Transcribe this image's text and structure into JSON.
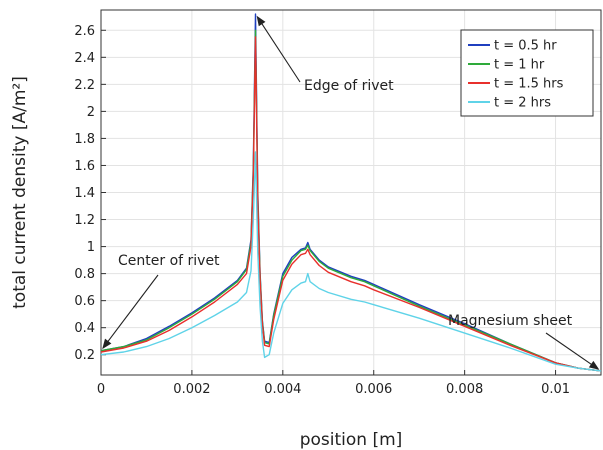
{
  "chart_data": {
    "type": "line",
    "xlabel": "position [m]",
    "ylabel": "total current density [A/m²]",
    "xlim": [
      0,
      0.011
    ],
    "ylim": [
      0.05,
      2.75
    ],
    "x_ticks": [
      {
        "value": 0,
        "label": "0"
      },
      {
        "value": 0.002,
        "label": "0.002"
      },
      {
        "value": 0.004,
        "label": "0.004"
      },
      {
        "value": 0.006,
        "label": "0.006"
      },
      {
        "value": 0.008,
        "label": "0.008"
      },
      {
        "value": 0.01,
        "label": "0.01"
      }
    ],
    "y_ticks": [
      {
        "value": 0.2,
        "label": "0.2"
      },
      {
        "value": 0.4,
        "label": "0.4"
      },
      {
        "value": 0.6,
        "label": "0.6"
      },
      {
        "value": 0.8,
        "label": "0.8"
      },
      {
        "value": 1.0,
        "label": "1"
      },
      {
        "value": 1.2,
        "label": "1.2"
      },
      {
        "value": 1.4,
        "label": "1.4"
      },
      {
        "value": 1.6,
        "label": "1.6"
      },
      {
        "value": 1.8,
        "label": "1.8"
      },
      {
        "value": 2.0,
        "label": "2"
      },
      {
        "value": 2.2,
        "label": "2.2"
      },
      {
        "value": 2.4,
        "label": "2.4"
      },
      {
        "value": 2.6,
        "label": "2.6"
      }
    ],
    "grid": true,
    "legend_position": "top-right",
    "series": [
      {
        "name": "t = 0.5 hr",
        "color": "#1f3fbf",
        "x": [
          0,
          0.0005,
          0.001,
          0.0015,
          0.002,
          0.0025,
          0.003,
          0.0032,
          0.0033,
          0.00335,
          0.0034,
          0.00345,
          0.0035,
          0.00355,
          0.0036,
          0.0037,
          0.0038,
          0.004,
          0.0042,
          0.0044,
          0.0045,
          0.00455,
          0.0046,
          0.0048,
          0.005,
          0.0055,
          0.0058,
          0.006,
          0.007,
          0.008,
          0.009,
          0.01,
          0.0105,
          0.011
        ],
        "y": [
          0.23,
          0.26,
          0.32,
          0.41,
          0.51,
          0.62,
          0.75,
          0.84,
          1.05,
          1.6,
          2.72,
          1.4,
          0.8,
          0.45,
          0.3,
          0.29,
          0.5,
          0.8,
          0.92,
          0.98,
          0.99,
          1.03,
          0.98,
          0.9,
          0.85,
          0.78,
          0.75,
          0.72,
          0.57,
          0.43,
          0.28,
          0.14,
          0.1,
          0.08
        ]
      },
      {
        "name": "t = 1 hr",
        "color": "#2eaa3a",
        "x": [
          0,
          0.0005,
          0.001,
          0.0015,
          0.002,
          0.0025,
          0.003,
          0.0032,
          0.0033,
          0.00335,
          0.0034,
          0.00345,
          0.0035,
          0.00355,
          0.0036,
          0.0037,
          0.0038,
          0.004,
          0.0042,
          0.0044,
          0.0045,
          0.00455,
          0.0046,
          0.0048,
          0.005,
          0.0055,
          0.0058,
          0.006,
          0.007,
          0.008,
          0.009,
          0.01,
          0.0105,
          0.011
        ],
        "y": [
          0.23,
          0.26,
          0.31,
          0.4,
          0.5,
          0.61,
          0.74,
          0.83,
          1.03,
          1.55,
          2.6,
          1.35,
          0.78,
          0.44,
          0.29,
          0.28,
          0.49,
          0.78,
          0.9,
          0.97,
          0.98,
          1.01,
          0.97,
          0.89,
          0.84,
          0.77,
          0.74,
          0.71,
          0.56,
          0.42,
          0.28,
          0.14,
          0.1,
          0.08
        ]
      },
      {
        "name": "t = 1.5 hrs",
        "color": "#e8302c",
        "x": [
          0,
          0.0005,
          0.001,
          0.0015,
          0.002,
          0.0025,
          0.003,
          0.0032,
          0.0033,
          0.00335,
          0.0034,
          0.00345,
          0.0035,
          0.00355,
          0.0036,
          0.0037,
          0.0038,
          0.004,
          0.0042,
          0.0044,
          0.0045,
          0.00455,
          0.0046,
          0.0048,
          0.005,
          0.0055,
          0.0058,
          0.006,
          0.007,
          0.008,
          0.009,
          0.01,
          0.0105,
          0.011
        ],
        "y": [
          0.22,
          0.25,
          0.3,
          0.38,
          0.48,
          0.59,
          0.72,
          0.8,
          1.0,
          1.5,
          2.55,
          1.3,
          0.75,
          0.42,
          0.27,
          0.26,
          0.46,
          0.75,
          0.87,
          0.94,
          0.95,
          0.98,
          0.94,
          0.86,
          0.81,
          0.74,
          0.71,
          0.68,
          0.55,
          0.41,
          0.27,
          0.14,
          0.1,
          0.08
        ]
      },
      {
        "name": "t = 2 hrs",
        "color": "#5fd3e8",
        "x": [
          0,
          0.0005,
          0.001,
          0.0015,
          0.002,
          0.0025,
          0.003,
          0.0032,
          0.0033,
          0.00335,
          0.0034,
          0.00345,
          0.0035,
          0.00355,
          0.0036,
          0.0037,
          0.0038,
          0.004,
          0.0042,
          0.0044,
          0.0045,
          0.00455,
          0.0046,
          0.0048,
          0.005,
          0.0055,
          0.0058,
          0.006,
          0.007,
          0.008,
          0.009,
          0.01,
          0.0105,
          0.011
        ],
        "y": [
          0.2,
          0.22,
          0.26,
          0.32,
          0.4,
          0.49,
          0.59,
          0.66,
          0.82,
          1.2,
          1.7,
          0.95,
          0.55,
          0.3,
          0.18,
          0.2,
          0.36,
          0.58,
          0.68,
          0.73,
          0.74,
          0.8,
          0.74,
          0.69,
          0.66,
          0.61,
          0.59,
          0.57,
          0.47,
          0.36,
          0.25,
          0.13,
          0.1,
          0.08
        ]
      }
    ],
    "annotations": [
      {
        "text": "Edge of rivet",
        "points_to": [
          0.0034,
          2.72
        ]
      },
      {
        "text": "Center of rivet",
        "points_to": [
          0.0,
          0.23
        ]
      },
      {
        "text": "Magnesium sheet",
        "points_to": [
          0.011,
          0.08
        ]
      }
    ]
  }
}
